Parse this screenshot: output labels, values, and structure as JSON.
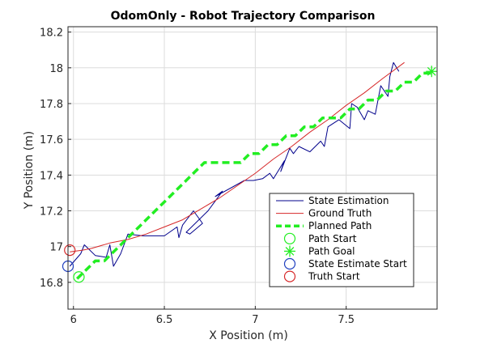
{
  "chart_data": {
    "type": "line",
    "title": "OdomOnly - Robot Trajectory Comparison",
    "xlabel": "X Position (m)",
    "ylabel": "Y Position (m)",
    "xlim": [
      5.97,
      8.0
    ],
    "ylim": [
      16.65,
      18.23
    ],
    "xticks": [
      6,
      6.5,
      7,
      7.5
    ],
    "xtick_labels": [
      "6",
      "6.5",
      "7",
      "7.5"
    ],
    "yticks": [
      16.8,
      17,
      17.2,
      17.4,
      17.6,
      17.8,
      18,
      18.2
    ],
    "ytick_labels": [
      "16.8",
      "17",
      "17.2",
      "17.4",
      "17.6",
      "17.8",
      "18",
      "18.2"
    ],
    "grid": true,
    "legend_position": "bottom-right",
    "series": [
      {
        "name": "State Estimation",
        "color": "#00008b",
        "style": "solid",
        "x": [
          5.98,
          6.04,
          6.06,
          6.08,
          6.12,
          6.18,
          6.2,
          6.22,
          6.26,
          6.3,
          6.38,
          6.46,
          6.5,
          6.57,
          6.58,
          6.6,
          6.66,
          6.71,
          6.64,
          6.62,
          6.74,
          6.82,
          6.78,
          6.94,
          6.99,
          7.04,
          7.08,
          7.1,
          7.16,
          7.14,
          7.19,
          7.21,
          7.24,
          7.3,
          7.36,
          7.38,
          7.4,
          7.46,
          7.52,
          7.53,
          7.56,
          7.6,
          7.62,
          7.66,
          7.69,
          7.71,
          7.73,
          7.74,
          7.76,
          7.79
        ],
        "y": [
          16.89,
          16.96,
          17.01,
          16.99,
          16.95,
          16.94,
          17.01,
          16.89,
          16.96,
          17.07,
          17.06,
          17.06,
          17.06,
          17.11,
          17.05,
          17.12,
          17.2,
          17.13,
          17.07,
          17.08,
          17.2,
          17.31,
          17.28,
          17.37,
          17.37,
          17.38,
          17.41,
          17.38,
          17.48,
          17.42,
          17.55,
          17.52,
          17.56,
          17.53,
          17.59,
          17.56,
          17.67,
          17.71,
          17.66,
          17.8,
          17.78,
          17.71,
          17.76,
          17.74,
          17.9,
          17.87,
          17.84,
          17.95,
          18.03,
          17.98
        ]
      },
      {
        "name": "Ground Truth",
        "color": "#d62728",
        "style": "solid",
        "x": [
          5.98,
          6.05,
          6.1,
          6.2,
          6.3,
          6.4,
          6.5,
          6.6,
          6.7,
          6.8,
          6.9,
          7.0,
          7.1,
          7.2,
          7.3,
          7.4,
          7.5,
          7.6,
          7.7,
          7.82
        ],
        "y": [
          16.97,
          16.98,
          16.99,
          17.02,
          17.04,
          17.07,
          17.11,
          17.15,
          17.21,
          17.27,
          17.34,
          17.41,
          17.49,
          17.56,
          17.64,
          17.71,
          17.79,
          17.86,
          17.94,
          18.03
        ]
      },
      {
        "name": "Planned Path",
        "color": "#22ee22",
        "style": "dashed",
        "x": [
          6.02,
          6.07,
          6.12,
          6.17,
          6.22,
          6.27,
          6.32,
          6.37,
          6.42,
          6.47,
          6.52,
          6.57,
          6.62,
          6.67,
          6.72,
          6.77,
          6.82,
          6.87,
          6.92,
          6.97,
          7.02,
          7.07,
          7.12,
          7.17,
          7.22,
          7.27,
          7.32,
          7.37,
          7.42,
          7.47,
          7.52,
          7.57,
          7.62,
          7.67,
          7.72,
          7.77,
          7.82,
          7.87,
          7.92,
          7.97
        ],
        "y": [
          16.82,
          16.87,
          16.92,
          16.92,
          16.97,
          17.02,
          17.07,
          17.12,
          17.17,
          17.22,
          17.27,
          17.32,
          17.37,
          17.42,
          17.47,
          17.47,
          17.47,
          17.47,
          17.47,
          17.52,
          17.52,
          17.57,
          17.57,
          17.62,
          17.62,
          17.67,
          17.67,
          17.72,
          17.72,
          17.72,
          17.77,
          17.77,
          17.82,
          17.82,
          17.87,
          17.87,
          17.92,
          17.92,
          17.97,
          17.97
        ]
      }
    ],
    "markers": [
      {
        "name": "Path Start",
        "shape": "circle",
        "color": "#22ee22",
        "x": 6.03,
        "y": 16.83
      },
      {
        "name": "Path Goal",
        "shape": "asterisk",
        "color": "#22ee22",
        "x": 7.97,
        "y": 17.98
      },
      {
        "name": "State Estimate Start",
        "shape": "circle",
        "color": "#1f3fbf",
        "x": 5.97,
        "y": 16.89
      },
      {
        "name": "Truth Start",
        "shape": "circle",
        "color": "#d62728",
        "x": 5.98,
        "y": 16.98
      }
    ]
  }
}
